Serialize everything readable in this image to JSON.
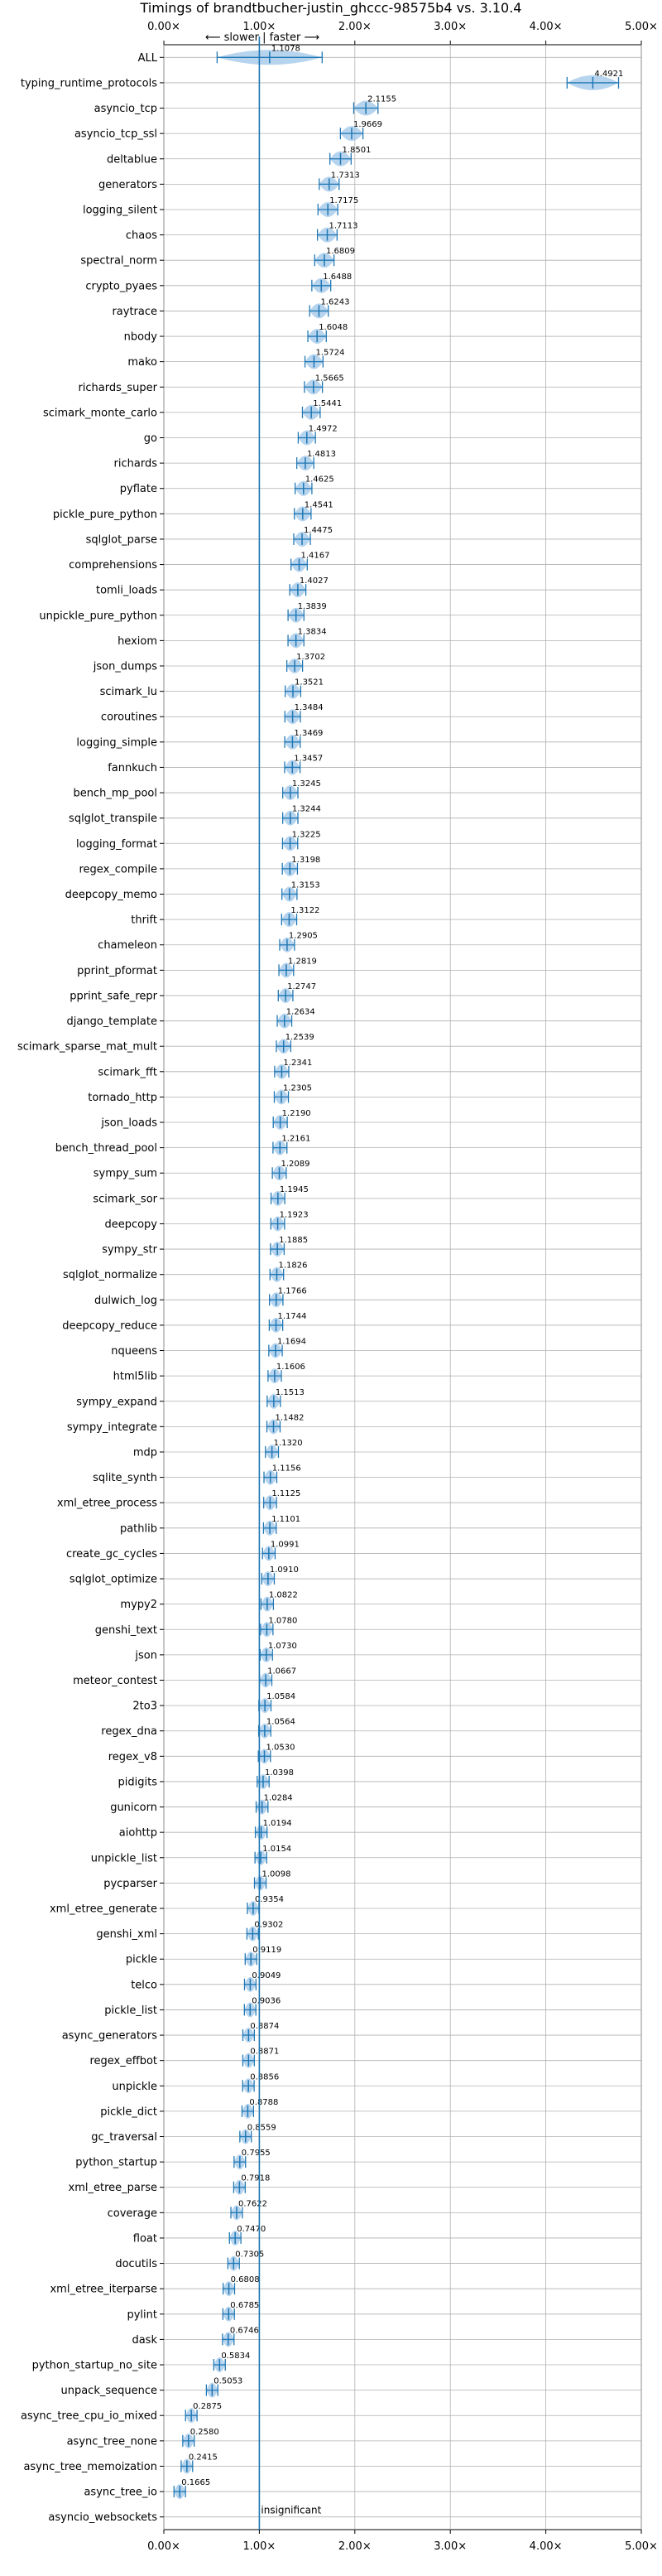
{
  "chart_data": {
    "type": "violin",
    "title": "Timings of brandtbucher-justin_ghccc-98575b4 vs. 3.10.4",
    "direction_note": "⟵ slower | faster ⟶",
    "xlim": [
      0,
      5
    ],
    "x_ticks": [
      0,
      1,
      2,
      3,
      4,
      5
    ],
    "x_tick_labels": [
      "0.00×",
      "1.00×",
      "2.00×",
      "3.00×",
      "4.00×",
      "5.00×"
    ],
    "grid": true,
    "reference_line": 1.0,
    "insignificant_label": "insignificant",
    "colors": {
      "accent": "#1f77b4",
      "violin": "#9fc5e8",
      "median_marker": "#e89ba0",
      "grid": "#b0b0b0"
    },
    "benchmarks": [
      {
        "name": "ALL",
        "value": 1.1078,
        "label": "1.1078"
      },
      {
        "name": "typing_runtime_protocols",
        "value": 4.4921,
        "label": "4.4921"
      },
      {
        "name": "asyncio_tcp",
        "value": 2.1155,
        "label": "2.1155"
      },
      {
        "name": "asyncio_tcp_ssl",
        "value": 1.9669,
        "label": "1.9669"
      },
      {
        "name": "deltablue",
        "value": 1.8501,
        "label": "1.8501"
      },
      {
        "name": "generators",
        "value": 1.7313,
        "label": "1.7313"
      },
      {
        "name": "logging_silent",
        "value": 1.7175,
        "label": "1.7175"
      },
      {
        "name": "chaos",
        "value": 1.7113,
        "label": "1.7113"
      },
      {
        "name": "spectral_norm",
        "value": 1.6809,
        "label": "1.6809"
      },
      {
        "name": "crypto_pyaes",
        "value": 1.6488,
        "label": "1.6488"
      },
      {
        "name": "raytrace",
        "value": 1.6243,
        "label": "1.6243"
      },
      {
        "name": "nbody",
        "value": 1.6048,
        "label": "1.6048"
      },
      {
        "name": "mako",
        "value": 1.5724,
        "label": "1.5724"
      },
      {
        "name": "richards_super",
        "value": 1.5665,
        "label": "1.5665"
      },
      {
        "name": "scimark_monte_carlo",
        "value": 1.5441,
        "label": "1.5441"
      },
      {
        "name": "go",
        "value": 1.4972,
        "label": "1.4972"
      },
      {
        "name": "richards",
        "value": 1.4813,
        "label": "1.4813"
      },
      {
        "name": "pyflate",
        "value": 1.4625,
        "label": "1.4625"
      },
      {
        "name": "pickle_pure_python",
        "value": 1.4541,
        "label": "1.4541"
      },
      {
        "name": "sqlglot_parse",
        "value": 1.4475,
        "label": "1.4475"
      },
      {
        "name": "comprehensions",
        "value": 1.4167,
        "label": "1.4167"
      },
      {
        "name": "tomli_loads",
        "value": 1.4027,
        "label": "1.4027"
      },
      {
        "name": "unpickle_pure_python",
        "value": 1.3839,
        "label": "1.3839"
      },
      {
        "name": "hexiom",
        "value": 1.3834,
        "label": "1.3834"
      },
      {
        "name": "json_dumps",
        "value": 1.3702,
        "label": "1.3702"
      },
      {
        "name": "scimark_lu",
        "value": 1.3521,
        "label": "1.3521"
      },
      {
        "name": "coroutines",
        "value": 1.3484,
        "label": "1.3484"
      },
      {
        "name": "logging_simple",
        "value": 1.3469,
        "label": "1.3469"
      },
      {
        "name": "fannkuch",
        "value": 1.3457,
        "label": "1.3457"
      },
      {
        "name": "bench_mp_pool",
        "value": 1.3245,
        "label": "1.3245"
      },
      {
        "name": "sqlglot_transpile",
        "value": 1.3244,
        "label": "1.3244"
      },
      {
        "name": "logging_format",
        "value": 1.3225,
        "label": "1.3225"
      },
      {
        "name": "regex_compile",
        "value": 1.3198,
        "label": "1.3198"
      },
      {
        "name": "deepcopy_memo",
        "value": 1.3153,
        "label": "1.3153"
      },
      {
        "name": "thrift",
        "value": 1.3122,
        "label": "1.3122"
      },
      {
        "name": "chameleon",
        "value": 1.2905,
        "label": "1.2905"
      },
      {
        "name": "pprint_pformat",
        "value": 1.2819,
        "label": "1.2819"
      },
      {
        "name": "pprint_safe_repr",
        "value": 1.2747,
        "label": "1.2747"
      },
      {
        "name": "django_template",
        "value": 1.2634,
        "label": "1.2634"
      },
      {
        "name": "scimark_sparse_mat_mult",
        "value": 1.2539,
        "label": "1.2539"
      },
      {
        "name": "scimark_fft",
        "value": 1.2341,
        "label": "1.2341"
      },
      {
        "name": "tornado_http",
        "value": 1.2305,
        "label": "1.2305"
      },
      {
        "name": "json_loads",
        "value": 1.219,
        "label": "1.2190"
      },
      {
        "name": "bench_thread_pool",
        "value": 1.2161,
        "label": "1.2161"
      },
      {
        "name": "sympy_sum",
        "value": 1.2089,
        "label": "1.2089"
      },
      {
        "name": "scimark_sor",
        "value": 1.1945,
        "label": "1.1945"
      },
      {
        "name": "deepcopy",
        "value": 1.1923,
        "label": "1.1923"
      },
      {
        "name": "sympy_str",
        "value": 1.1885,
        "label": "1.1885"
      },
      {
        "name": "sqlglot_normalize",
        "value": 1.1826,
        "label": "1.1826"
      },
      {
        "name": "dulwich_log",
        "value": 1.1766,
        "label": "1.1766"
      },
      {
        "name": "deepcopy_reduce",
        "value": 1.1744,
        "label": "1.1744"
      },
      {
        "name": "nqueens",
        "value": 1.1694,
        "label": "1.1694"
      },
      {
        "name": "html5lib",
        "value": 1.1606,
        "label": "1.1606"
      },
      {
        "name": "sympy_expand",
        "value": 1.1513,
        "label": "1.1513"
      },
      {
        "name": "sympy_integrate",
        "value": 1.1482,
        "label": "1.1482"
      },
      {
        "name": "mdp",
        "value": 1.132,
        "label": "1.1320"
      },
      {
        "name": "sqlite_synth",
        "value": 1.1156,
        "label": "1.1156"
      },
      {
        "name": "xml_etree_process",
        "value": 1.1125,
        "label": "1.1125"
      },
      {
        "name": "pathlib",
        "value": 1.1101,
        "label": "1.1101"
      },
      {
        "name": "create_gc_cycles",
        "value": 1.0991,
        "label": "1.0991"
      },
      {
        "name": "sqlglot_optimize",
        "value": 1.091,
        "label": "1.0910"
      },
      {
        "name": "mypy2",
        "value": 1.0822,
        "label": "1.0822"
      },
      {
        "name": "genshi_text",
        "value": 1.078,
        "label": "1.0780"
      },
      {
        "name": "json",
        "value": 1.073,
        "label": "1.0730"
      },
      {
        "name": "meteor_contest",
        "value": 1.0667,
        "label": "1.0667"
      },
      {
        "name": "2to3",
        "value": 1.0584,
        "label": "1.0584"
      },
      {
        "name": "regex_dna",
        "value": 1.0564,
        "label": "1.0564"
      },
      {
        "name": "regex_v8",
        "value": 1.053,
        "label": "1.0530"
      },
      {
        "name": "pidigits",
        "value": 1.0398,
        "label": "1.0398"
      },
      {
        "name": "gunicorn",
        "value": 1.0284,
        "label": "1.0284"
      },
      {
        "name": "aiohttp",
        "value": 1.0194,
        "label": "1.0194"
      },
      {
        "name": "unpickle_list",
        "value": 1.0154,
        "label": "1.0154"
      },
      {
        "name": "pycparser",
        "value": 1.0098,
        "label": "1.0098"
      },
      {
        "name": "xml_etree_generate",
        "value": 0.9354,
        "label": "0.9354"
      },
      {
        "name": "genshi_xml",
        "value": 0.9302,
        "label": "0.9302"
      },
      {
        "name": "pickle",
        "value": 0.9119,
        "label": "0.9119"
      },
      {
        "name": "telco",
        "value": 0.9049,
        "label": "0.9049"
      },
      {
        "name": "pickle_list",
        "value": 0.9036,
        "label": "0.9036"
      },
      {
        "name": "async_generators",
        "value": 0.8874,
        "label": "0.8874"
      },
      {
        "name": "regex_effbot",
        "value": 0.8871,
        "label": "0.8871"
      },
      {
        "name": "unpickle",
        "value": 0.8856,
        "label": "0.8856"
      },
      {
        "name": "pickle_dict",
        "value": 0.8788,
        "label": "0.8788"
      },
      {
        "name": "gc_traversal",
        "value": 0.8559,
        "label": "0.8559"
      },
      {
        "name": "python_startup",
        "value": 0.7955,
        "label": "0.7955"
      },
      {
        "name": "xml_etree_parse",
        "value": 0.7918,
        "label": "0.7918"
      },
      {
        "name": "coverage",
        "value": 0.7622,
        "label": "0.7622"
      },
      {
        "name": "float",
        "value": 0.747,
        "label": "0.7470"
      },
      {
        "name": "docutils",
        "value": 0.7305,
        "label": "0.7305"
      },
      {
        "name": "xml_etree_iterparse",
        "value": 0.6808,
        "label": "0.6808"
      },
      {
        "name": "pylint",
        "value": 0.6785,
        "label": "0.6785"
      },
      {
        "name": "dask",
        "value": 0.6746,
        "label": "0.6746"
      },
      {
        "name": "python_startup_no_site",
        "value": 0.5834,
        "label": "0.5834"
      },
      {
        "name": "unpack_sequence",
        "value": 0.5053,
        "label": "0.5053"
      },
      {
        "name": "async_tree_cpu_io_mixed",
        "value": 0.2875,
        "label": "0.2875"
      },
      {
        "name": "async_tree_none",
        "value": 0.258,
        "label": "0.2580"
      },
      {
        "name": "async_tree_memoization",
        "value": 0.2415,
        "label": "0.2415"
      },
      {
        "name": "async_tree_io",
        "value": 0.1665,
        "label": "0.1665"
      },
      {
        "name": "asyncio_websockets",
        "value": null,
        "label": ""
      }
    ]
  }
}
